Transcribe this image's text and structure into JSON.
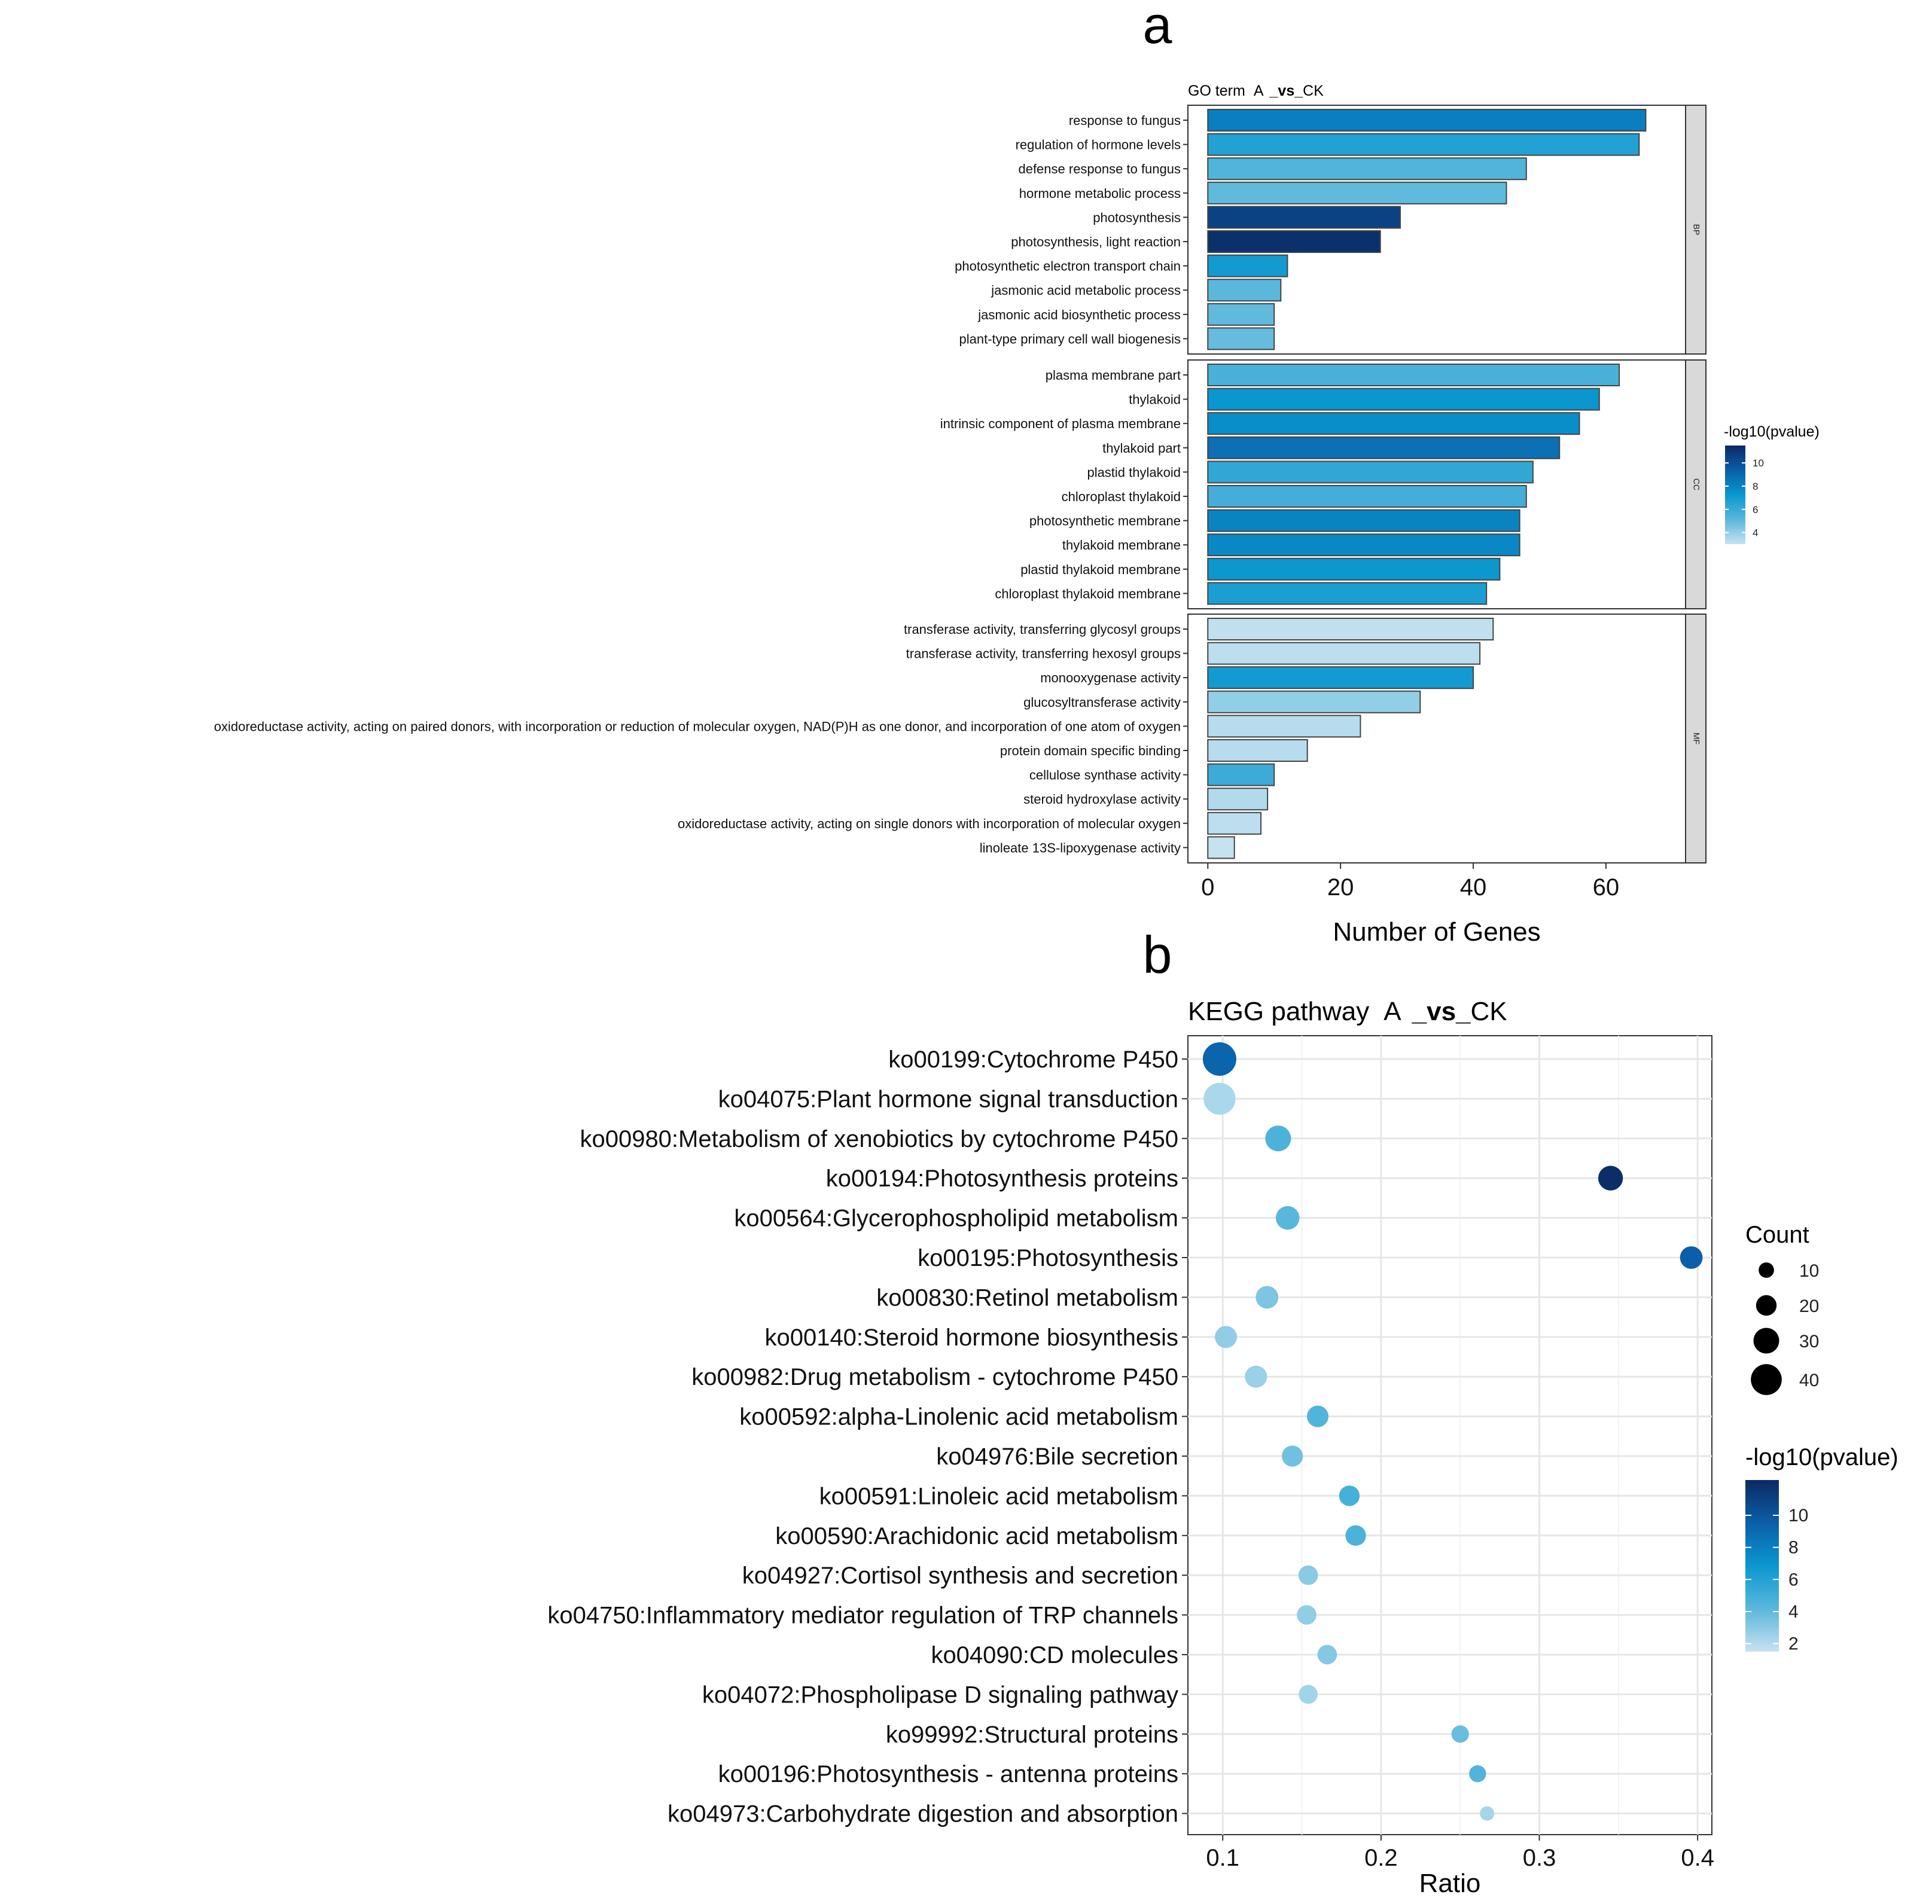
{
  "panel_a": {
    "letter": "a",
    "title_prefix": "GO term",
    "title_a": "A",
    "title_vs": "_vs_",
    "title_ck": "CK"
  },
  "panel_b": {
    "letter": "b",
    "title_prefix": "KEGG pathway",
    "title_a": "A",
    "title_vs": "_vs_",
    "title_ck": "CK"
  },
  "chart_data": [
    {
      "type": "bar",
      "orientation": "horizontal",
      "xlabel": "Number of Genes",
      "xlim": [
        -3,
        72
      ],
      "xticks": [
        0,
        20,
        40,
        60
      ],
      "grid": false,
      "legend": {
        "title": "-log10(pvalue)",
        "ticks": [
          4,
          6,
          8,
          10
        ],
        "range": [
          3,
          11.5
        ],
        "placement": "right"
      },
      "colorscale": [
        "#c6e2f0",
        "#5ab7dc",
        "#0a97cf",
        "#0b5ea8",
        "#0b2a63"
      ],
      "facets": [
        {
          "strip": "BP",
          "bars": [
            {
              "label": "response to fungus",
              "value": 66,
              "color_value": 8.2
            },
            {
              "label": "regulation of hormone levels",
              "value": 65,
              "color_value": 6.6
            },
            {
              "label": "defense response to fungus",
              "value": 48,
              "color_value": 5.3
            },
            {
              "label": "hormone metabolic process",
              "value": 45,
              "color_value": 5.0
            },
            {
              "label": "photosynthesis",
              "value": 29,
              "color_value": 10.5
            },
            {
              "label": "photosynthesis, light reaction",
              "value": 26,
              "color_value": 11.2
            },
            {
              "label": "photosynthetic electron transport chain",
              "value": 12,
              "color_value": 7.0
            },
            {
              "label": "jasmonic acid metabolic process",
              "value": 11,
              "color_value": 5.1
            },
            {
              "label": "jasmonic acid biosynthetic process",
              "value": 10,
              "color_value": 5.0
            },
            {
              "label": "plant-type primary cell wall biogenesis",
              "value": 10,
              "color_value": 4.9
            }
          ]
        },
        {
          "strip": "CC",
          "bars": [
            {
              "label": "plasma membrane part",
              "value": 62,
              "color_value": 5.6
            },
            {
              "label": "thylakoid",
              "value": 59,
              "color_value": 7.3
            },
            {
              "label": "intrinsic component of plasma membrane",
              "value": 56,
              "color_value": 7.6
            },
            {
              "label": "thylakoid part",
              "value": 53,
              "color_value": 8.7
            },
            {
              "label": "plastid thylakoid",
              "value": 49,
              "color_value": 6.2
            },
            {
              "label": "chloroplast thylakoid",
              "value": 48,
              "color_value": 5.7
            },
            {
              "label": "photosynthetic membrane",
              "value": 47,
              "color_value": 8.0
            },
            {
              "label": "thylakoid membrane",
              "value": 47,
              "color_value": 7.8
            },
            {
              "label": "plastid thylakoid membrane",
              "value": 44,
              "color_value": 7.2
            },
            {
              "label": "chloroplast thylakoid membrane",
              "value": 42,
              "color_value": 6.8
            }
          ]
        },
        {
          "strip": "MF",
          "bars": [
            {
              "label": "transferase activity, transferring glycosyl groups",
              "value": 43,
              "color_value": 3.1
            },
            {
              "label": "transferase activity, transferring hexosyl groups",
              "value": 41,
              "color_value": 3.2
            },
            {
              "label": "monooxygenase activity",
              "value": 40,
              "color_value": 7.0
            },
            {
              "label": "glucosyltransferase activity",
              "value": 32,
              "color_value": 4.0
            },
            {
              "label": "oxidoreductase activity, acting on paired donors, with incorporation or reduction of molecular oxygen, NAD(P)H as one donor, and incorporation of one atom of oxygen",
              "value": 23,
              "color_value": 3.3
            },
            {
              "label": "protein domain specific binding",
              "value": 15,
              "color_value": 3.3
            },
            {
              "label": "cellulose synthase activity",
              "value": 10,
              "color_value": 5.9
            },
            {
              "label": "steroid hydroxylase activity",
              "value": 9,
              "color_value": 3.4
            },
            {
              "label": "oxidoreductase activity, acting on single donors with incorporation of molecular oxygen",
              "value": 8,
              "color_value": 3.2
            },
            {
              "label": "linoleate 13S-lipoxygenase activity",
              "value": 4,
              "color_value": 3.0
            }
          ]
        }
      ]
    },
    {
      "type": "scatter",
      "subtype": "bubble",
      "xlabel": "Ratio",
      "xlim": [
        0.078,
        0.409
      ],
      "xticks": [
        0.1,
        0.2,
        0.3,
        0.4
      ],
      "grid": true,
      "size_legend": {
        "title": "Count",
        "ticks": [
          10,
          20,
          30,
          40
        ],
        "placement": "right"
      },
      "color_legend": {
        "title": "-log10(pvalue)",
        "ticks": [
          2,
          4,
          6,
          8,
          10
        ],
        "range": [
          1.5,
          12.2
        ],
        "placement": "right"
      },
      "colorscale": [
        "#c6e2f0",
        "#5ab7dc",
        "#0a97cf",
        "#0b5ea8",
        "#0b2a63"
      ],
      "points": [
        {
          "label": "ko00199:Cytochrome P450",
          "x": 0.098,
          "count": 45,
          "color_value": 9.2
        },
        {
          "label": "ko04075:Plant hormone signal transduction",
          "x": 0.098,
          "count": 42,
          "color_value": 2.2
        },
        {
          "label": "ko00980:Metabolism of xenobiotics by cytochrome P450",
          "x": 0.135,
          "count": 30,
          "color_value": 4.6
        },
        {
          "label": "ko00194:Photosynthesis proteins",
          "x": 0.345,
          "count": 28,
          "color_value": 12.0
        },
        {
          "label": "ko00564:Glycerophospholipid metabolism",
          "x": 0.141,
          "count": 26,
          "color_value": 4.2
        },
        {
          "label": "ko00195:Photosynthesis",
          "x": 0.396,
          "count": 24,
          "color_value": 9.5
        },
        {
          "label": "ko00830:Retinol metabolism",
          "x": 0.128,
          "count": 24,
          "color_value": 3.3
        },
        {
          "label": "ko00140:Steroid hormone biosynthesis",
          "x": 0.102,
          "count": 23,
          "color_value": 2.8
        },
        {
          "label": "ko00982:Drug metabolism - cytochrome P450",
          "x": 0.121,
          "count": 23,
          "color_value": 2.6
        },
        {
          "label": "ko00592:alpha-Linolenic acid metabolism",
          "x": 0.16,
          "count": 22,
          "color_value": 4.4
        },
        {
          "label": "ko04976:Bile secretion",
          "x": 0.144,
          "count": 21,
          "color_value": 3.6
        },
        {
          "label": "ko00591:Linoleic acid metabolism",
          "x": 0.18,
          "count": 20,
          "color_value": 4.8
        },
        {
          "label": "ko00590:Arachidonic acid metabolism",
          "x": 0.184,
          "count": 20,
          "color_value": 4.6
        },
        {
          "label": "ko04927:Cortisol synthesis and secretion",
          "x": 0.154,
          "count": 18,
          "color_value": 3.0
        },
        {
          "label": "ko04750:Inflammatory mediator regulation of TRP channels",
          "x": 0.153,
          "count": 18,
          "color_value": 2.8
        },
        {
          "label": "ko04090:CD molecules",
          "x": 0.166,
          "count": 18,
          "color_value": 3.1
        },
        {
          "label": "ko04072:Phospholipase D signaling pathway",
          "x": 0.154,
          "count": 17,
          "color_value": 2.4
        },
        {
          "label": "ko99992:Structural proteins",
          "x": 0.25,
          "count": 14,
          "color_value": 3.8
        },
        {
          "label": "ko00196:Photosynthesis - antenna proteins",
          "x": 0.261,
          "count": 13,
          "color_value": 4.4
        },
        {
          "label": "ko04973:Carbohydrate digestion and absorption",
          "x": 0.267,
          "count": 8,
          "color_value": 2.3
        }
      ]
    }
  ]
}
